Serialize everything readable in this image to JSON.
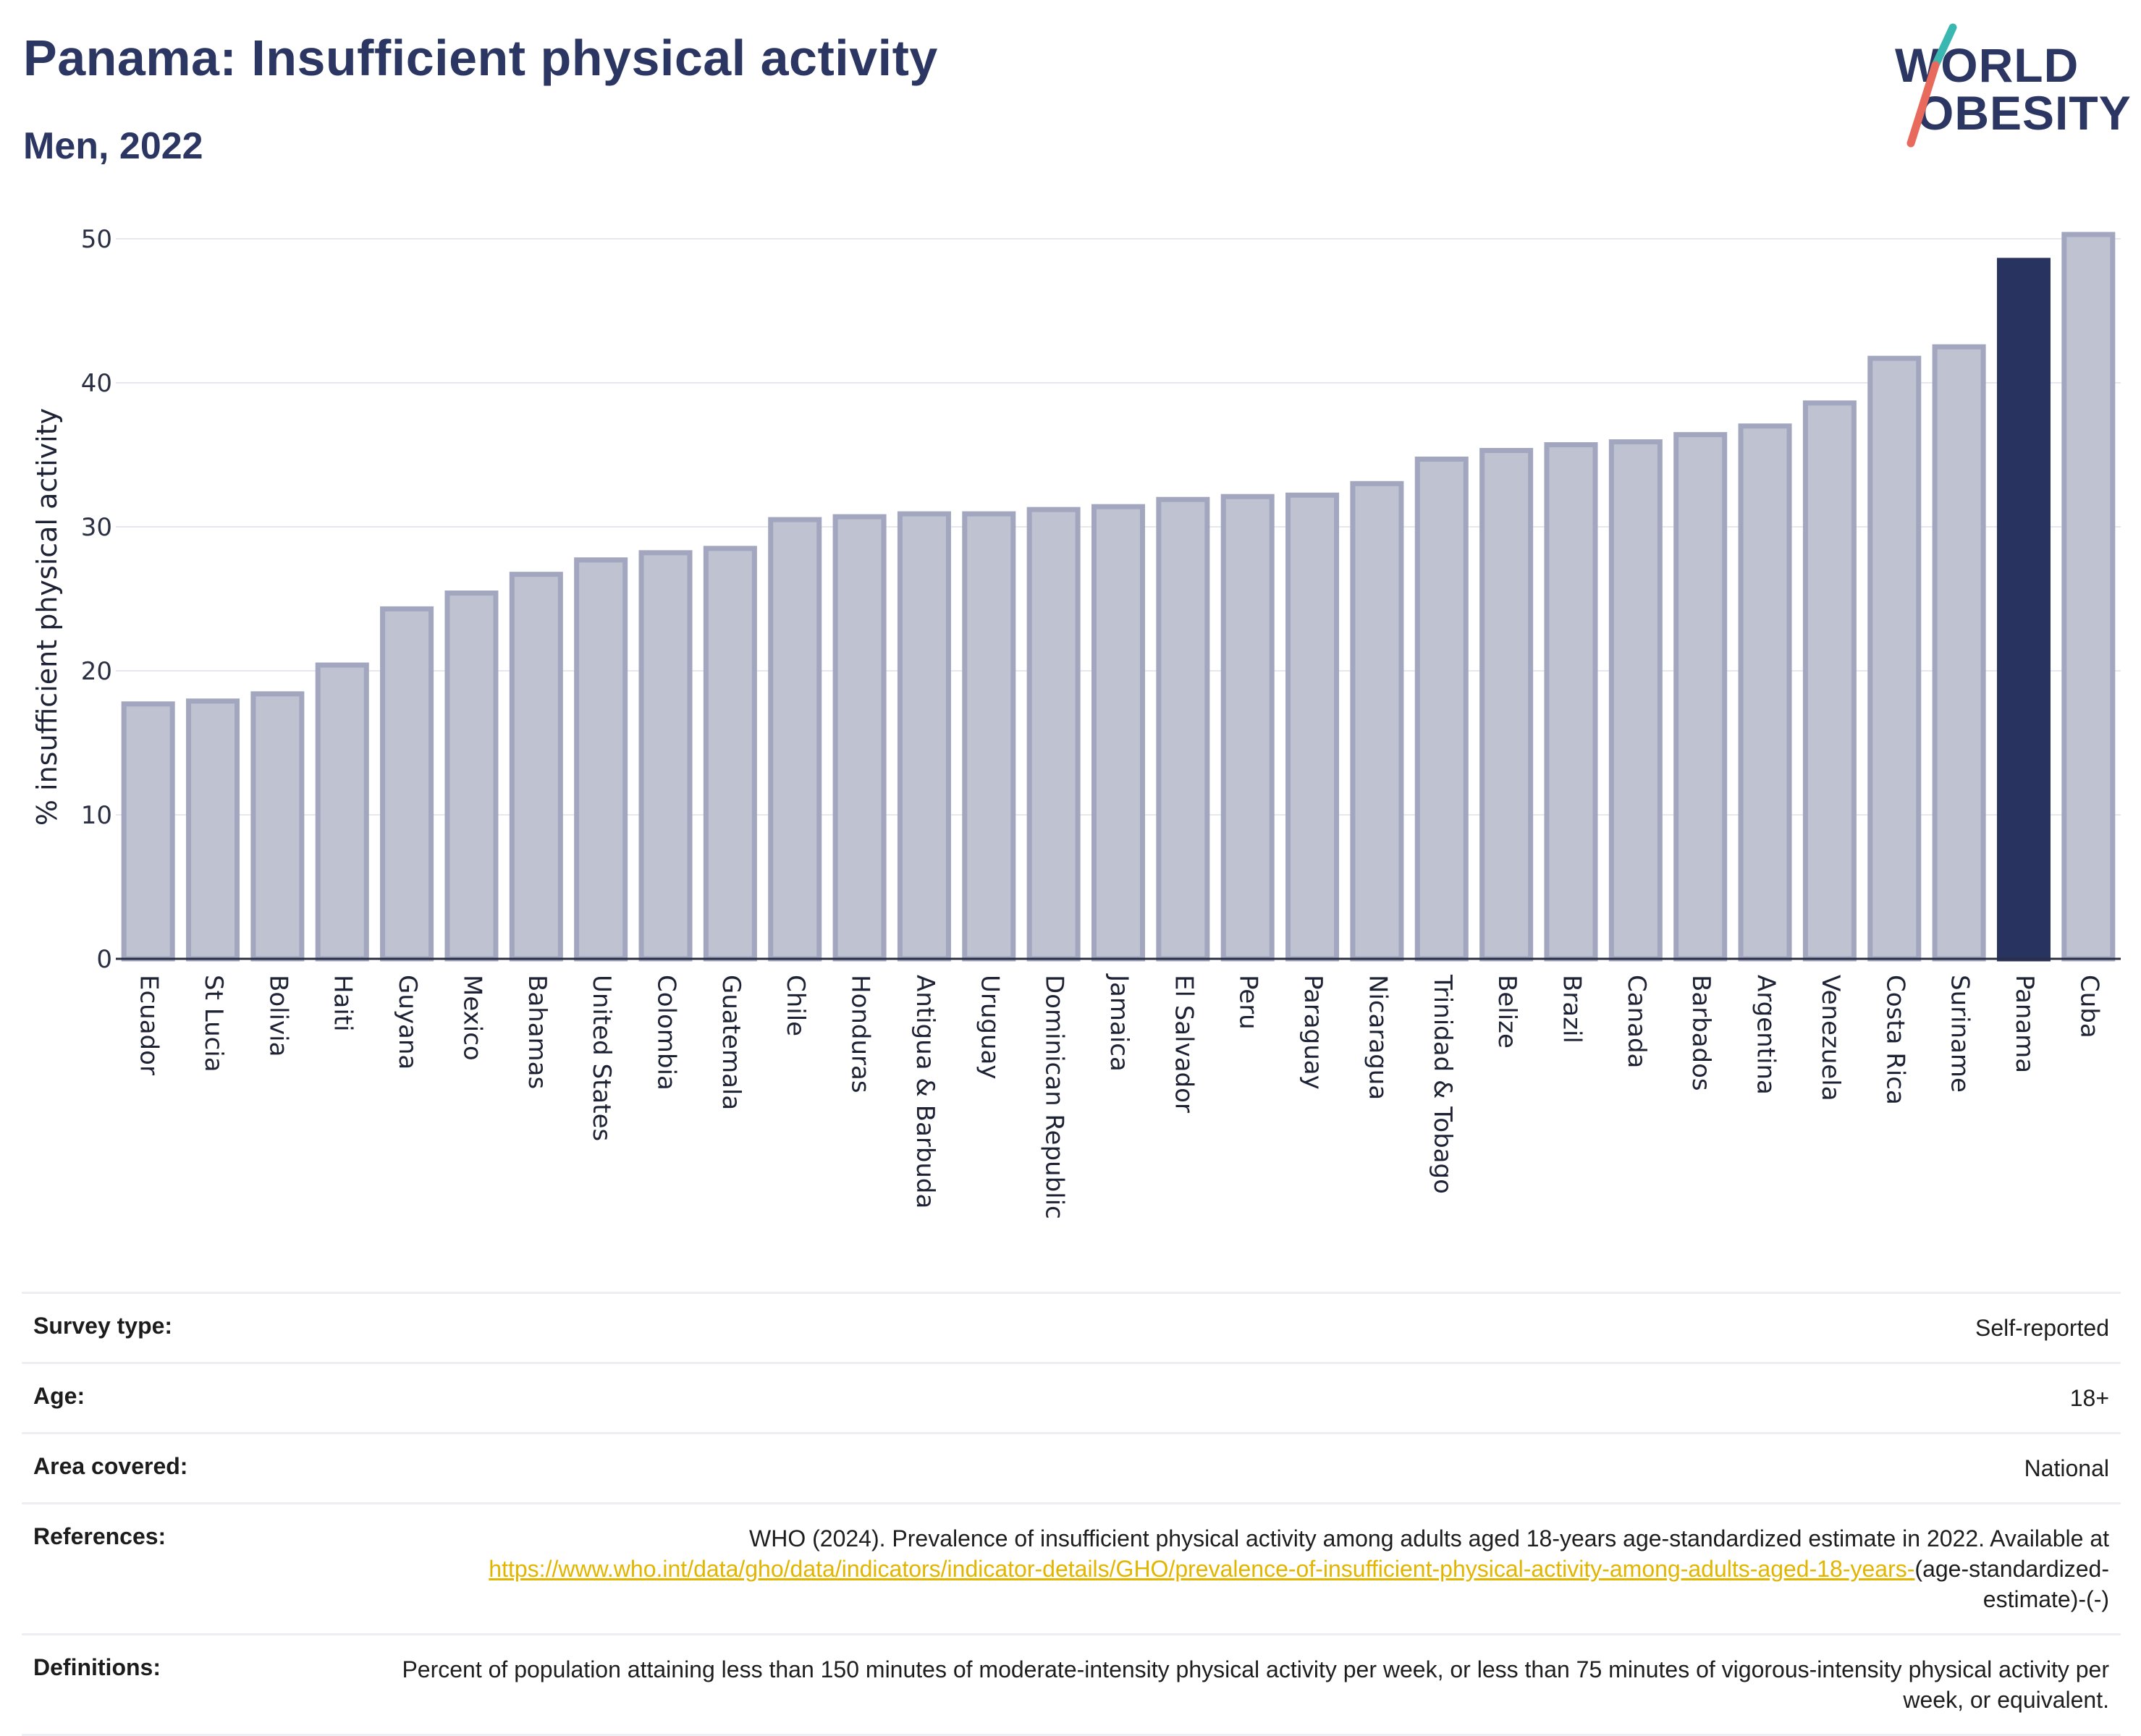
{
  "header": {
    "title": "Panama: Insufficient physical activity",
    "subtitle": "Men, 2022"
  },
  "logo": {
    "line1": "WORLD",
    "line2": "OBESITY"
  },
  "colors": {
    "highlight": "#283360",
    "bar": "#bfc2d1",
    "bar_edge": "#a2a6bf",
    "axis": "#2a2f44",
    "grid": "#e6e8ee",
    "link": "#e2b500",
    "logo_slash_teal": "#3bb7b2",
    "logo_slash_red": "#e86a5c"
  },
  "chart_data": {
    "type": "bar",
    "categories": [
      "Ecuador",
      "St Lucia",
      "Bolivia",
      "Haiti",
      "Guyana",
      "Mexico",
      "Bahamas",
      "United States",
      "Colombia",
      "Guatemala",
      "Chile",
      "Honduras",
      "Antigua & Barbuda",
      "Uruguay",
      "Dominican Republic",
      "Jamaica",
      "El Salvador",
      "Peru",
      "Paraguay",
      "Nicaragua",
      "Trinidad & Tobago",
      "Belize",
      "Brazil",
      "Canada",
      "Barbados",
      "Argentina",
      "Venezuela",
      "Costa Rica",
      "Suriname",
      "Panama",
      "Cuba"
    ],
    "values": [
      17.7,
      17.9,
      18.4,
      20.4,
      24.3,
      25.4,
      26.7,
      27.7,
      28.2,
      28.5,
      30.5,
      30.7,
      30.9,
      30.9,
      31.2,
      31.4,
      31.9,
      32.1,
      32.2,
      33.0,
      34.7,
      35.3,
      35.7,
      35.9,
      36.4,
      37.0,
      38.6,
      41.7,
      42.5,
      48.5,
      50.3
    ],
    "highlight": "Panama",
    "ylabel": "% insufficient physical activity",
    "xlabel": "",
    "ylim": [
      0,
      50
    ],
    "yticks": [
      "0",
      "10",
      "20",
      "30",
      "40",
      "50"
    ],
    "grid": true,
    "legend": "none"
  },
  "meta": {
    "survey_label": "Survey type:",
    "survey_value": "Self-reported",
    "age_label": "Age:",
    "age_value": "18+",
    "area_label": "Area covered:",
    "area_value": "National",
    "references_label": "References:",
    "references_text1": "WHO (2024). Prevalence of insufficient physical activity among adults aged 18-years age-standardized estimate in 2022. Available at",
    "references_link": "https://www.who.int/data/gho/data/indicators/indicator-details/GHO/prevalence-of-insufficient-physical-activity-among-adults-aged-18-years-",
    "references_text2": "(age-standardized-estimate)-(-)",
    "definitions_label": "Definitions:",
    "definitions_value": "Percent of population attaining less than 150 minutes of moderate-intensity physical activity per week, or less than 75 minutes of vigorous-intensity physical activity per week, or equivalent."
  }
}
